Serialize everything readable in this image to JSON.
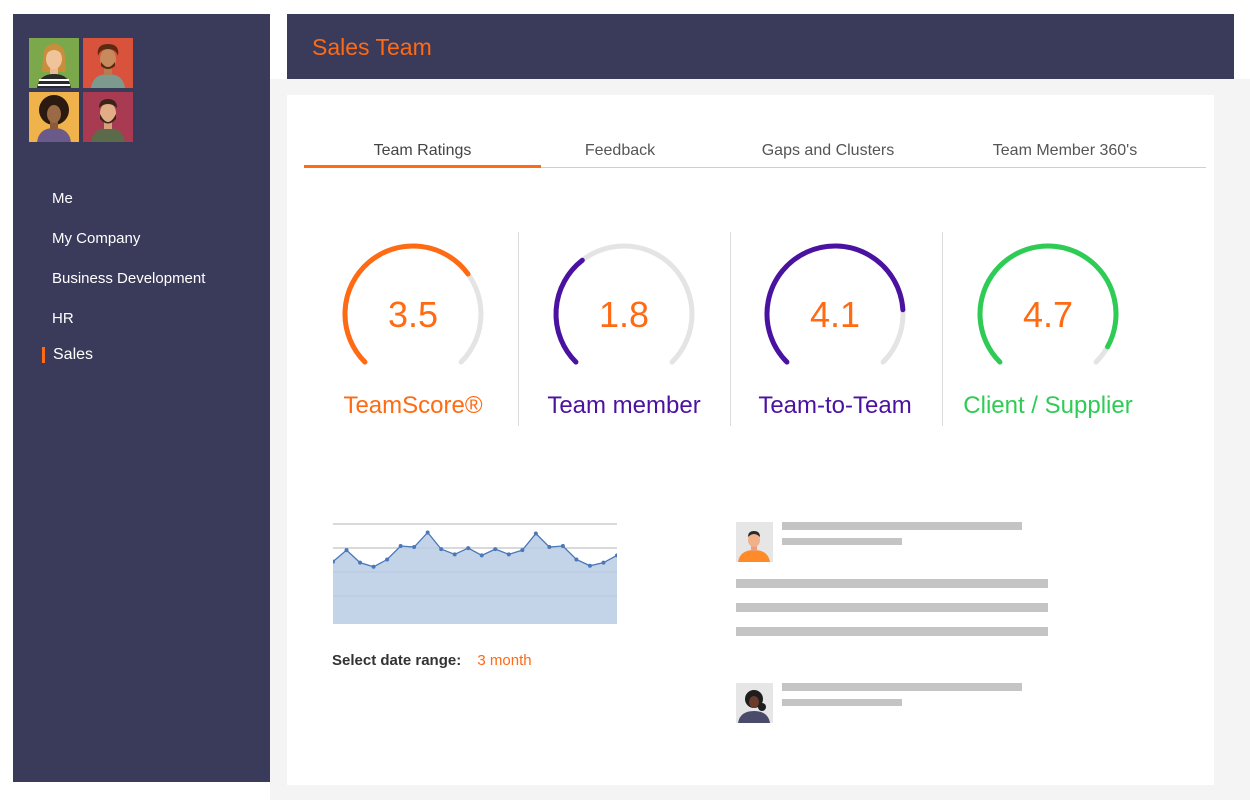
{
  "header": {
    "title": "Sales Team"
  },
  "sidebar": {
    "items": [
      {
        "label": "Me"
      },
      {
        "label": "My Company"
      },
      {
        "label": "Business Development"
      },
      {
        "label": "HR"
      },
      {
        "label": "Sales",
        "active": true
      }
    ]
  },
  "tabs": [
    {
      "label": "Team Ratings",
      "active": true
    },
    {
      "label": "Feedback"
    },
    {
      "label": "Gaps and Clusters"
    },
    {
      "label": "Team Member 360's"
    }
  ],
  "ratings": [
    {
      "value": "3.5",
      "label": "TeamScore®",
      "color": "#ff6a13",
      "fraction": 0.7
    },
    {
      "value": "1.8",
      "label": "Team member",
      "color": "#4a12a0",
      "fraction": 0.36
    },
    {
      "value": "4.1",
      "label": "Team-to-Team",
      "color": "#4a12a0",
      "fraction": 0.82
    },
    {
      "value": "4.7",
      "label": "Client / Supplier",
      "color": "#2ecc55",
      "fraction": 0.94
    }
  ],
  "chart_data": {
    "type": "area",
    "values": [
      6,
      7.1,
      5.9,
      5.5,
      6.2,
      7.5,
      7.4,
      8.8,
      7.2,
      6.7,
      7.3,
      6.6,
      7.2,
      6.7,
      7.1,
      8.7,
      7.4,
      7.5,
      6.2,
      5.6,
      5.9,
      6.6
    ],
    "ylim": [
      0,
      10
    ],
    "grid": true
  },
  "date_range": {
    "label": "Select date range:",
    "value": "3 month"
  },
  "colors": {
    "accent": "#ff6a13",
    "sidebar": "#3a3a5a",
    "purple": "#4a12a0",
    "green": "#2ecc55"
  }
}
